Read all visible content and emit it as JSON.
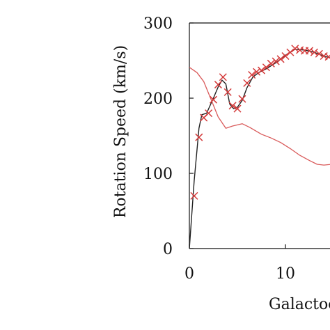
{
  "chart_data": {
    "type": "line",
    "xlabel": "Galactocentric",
    "ylabel": "Rotation Speed (km/s)",
    "xlim": [
      0,
      14.8
    ],
    "ylim": [
      0,
      300
    ],
    "x_ticks": [
      0,
      10
    ],
    "x_tick_labels": [
      "0",
      "10"
    ],
    "y_ticks": [
      0,
      100,
      200,
      300
    ],
    "y_tick_labels": [
      "0",
      "100",
      "200",
      "300"
    ],
    "grid": false,
    "legend": "none",
    "colors": {
      "axis": "#111111",
      "model": "#222222",
      "observed": "#d43a3a",
      "reference": "#d95a5a"
    },
    "series": [
      {
        "kind": "line",
        "color": "#d95a5a",
        "x": [
          0,
          0.8,
          1.5,
          2.2,
          3.0,
          3.8,
          4.5,
          5.5,
          6.3,
          7.5,
          8.5,
          9.5,
          10.5,
          11.5,
          12.5,
          13.3,
          14.0,
          14.8
        ],
        "y": [
          241,
          234,
          222,
          200,
          175,
          160,
          163,
          166,
          161,
          152,
          147,
          141,
          133,
          124,
          117,
          112,
          111,
          112
        ]
      },
      {
        "kind": "line",
        "color": "#222222",
        "x": [
          0,
          0.5,
          1.0,
          1.3,
          1.8,
          2.5,
          3.0,
          3.4,
          3.8,
          4.2,
          4.6,
          5.0,
          5.5,
          6.0,
          6.6,
          7.2,
          8.0,
          9.0,
          10.0,
          11.0,
          12.0,
          13.0,
          14.0,
          14.8
        ],
        "y": [
          0,
          90,
          160,
          178,
          180,
          200,
          215,
          224,
          219,
          192,
          186,
          188,
          197,
          214,
          228,
          234,
          239,
          247,
          257,
          265,
          264,
          261,
          256,
          253
        ]
      },
      {
        "kind": "markers",
        "marker": "x",
        "color": "#d43a3a",
        "x": [
          0.5,
          1.0,
          1.5,
          2.0,
          2.5,
          3.0,
          3.5,
          4.0,
          4.5,
          5.0,
          5.5,
          6.0,
          6.5,
          7.0,
          7.5,
          8.0,
          8.5,
          9.0,
          9.5,
          10.0,
          10.5,
          11.0,
          11.5,
          12.0,
          12.5,
          13.0,
          13.5,
          14.0,
          14.5
        ],
        "y": [
          70,
          148,
          174,
          180,
          198,
          218,
          228,
          208,
          190,
          186,
          199,
          220,
          231,
          235,
          237,
          241,
          246,
          249,
          252,
          256,
          261,
          266,
          264,
          263,
          263,
          261,
          259,
          256,
          255
        ]
      }
    ]
  }
}
